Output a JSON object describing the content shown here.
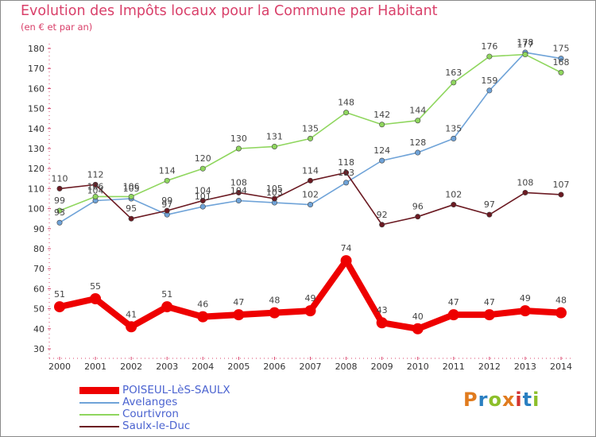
{
  "title": "Evolution des Impôts locaux pour la Commune par Habitant",
  "subtitle": "(en € et par an)",
  "logo": {
    "text": "Proxiti",
    "colors": [
      "#e07b1e",
      "#2a7fc1",
      "#8cbf2a",
      "#e07b1e",
      "#d3322f",
      "#2a7fc1",
      "#8cbf2a"
    ]
  },
  "chart_data": {
    "type": "line",
    "title": "Evolution des Impôts locaux pour la Commune par Habitant",
    "subtitle": "(en € et par an)",
    "xlabel": "",
    "ylabel": "",
    "ylim": [
      30,
      180
    ],
    "yticks": [
      30,
      40,
      50,
      60,
      70,
      80,
      90,
      100,
      110,
      120,
      130,
      140,
      150,
      160,
      170,
      180
    ],
    "grid": false,
    "legend_position": "bottom-left",
    "x": [
      "2000",
      "2001",
      "2002",
      "2003",
      "2004",
      "2005",
      "2006",
      "2007",
      "2008",
      "2009",
      "2010",
      "2011",
      "2012",
      "2013",
      "2014"
    ],
    "series": [
      {
        "name": "POISEUL-LèS-SAULX",
        "color": "#ee0000",
        "values": [
          51,
          55,
          41,
          51,
          46,
          47,
          48,
          49,
          74,
          43,
          40,
          47,
          47,
          49,
          48
        ],
        "labels": [
          "51",
          "55",
          "41",
          "51",
          "46",
          "47",
          "48",
          "49",
          "74",
          "43",
          "40",
          "47",
          "47",
          "49",
          "48"
        ]
      },
      {
        "name": "Avelanges",
        "color": "#6fa3d8",
        "values": [
          93,
          104,
          105,
          97,
          101,
          104,
          103,
          102,
          113,
          124,
          128,
          135,
          159,
          178,
          175
        ],
        "labels": [
          "93",
          "104",
          "105",
          "97",
          "101",
          "104",
          "103",
          "102",
          "113",
          "124",
          "128",
          "135",
          "159",
          "178",
          "175"
        ]
      },
      {
        "name": "Courtivron",
        "color": "#8fd65e",
        "values": [
          99,
          106,
          106,
          114,
          120,
          130,
          131,
          135,
          148,
          142,
          144,
          163,
          176,
          177,
          168
        ],
        "labels": [
          "99",
          "106",
          "106",
          "114",
          "120",
          "130",
          "131",
          "135",
          "148",
          "142",
          "144",
          "163",
          "176",
          "177",
          "168"
        ]
      },
      {
        "name": "Saulx-le-Duc",
        "color": "#6b1a22",
        "values": [
          110,
          112,
          95,
          99,
          104,
          108,
          105,
          114,
          118,
          92,
          96,
          102,
          97,
          108,
          107
        ],
        "labels": [
          "110",
          "112",
          "95",
          "99",
          "104",
          "108",
          "105",
          "114",
          "118",
          "92",
          "96",
          "102",
          "97",
          "108",
          "107"
        ]
      }
    ]
  }
}
